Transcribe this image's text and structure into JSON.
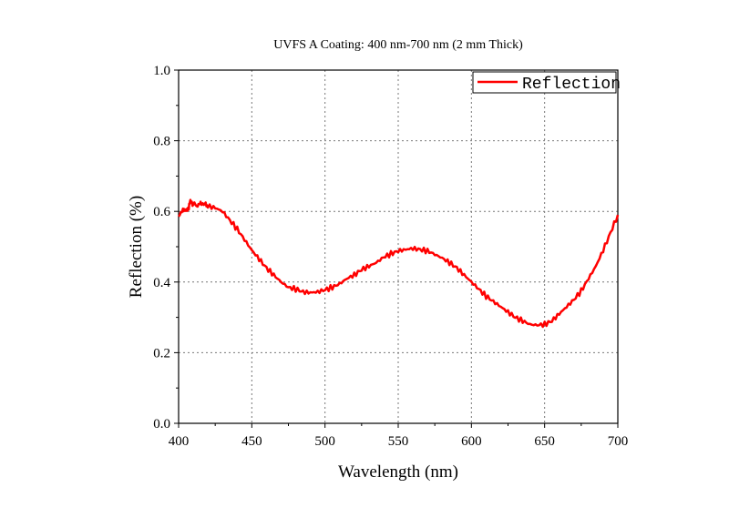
{
  "chart_data": {
    "type": "line",
    "title": "UVFS A Coating: 400 nm-700 nm (2 mm Thick)",
    "xlabel": "Wavelength (nm)",
    "ylabel": "Reflection (%)",
    "xlim": [
      400,
      700
    ],
    "ylim": [
      0,
      1.0
    ],
    "xticks": [
      "400",
      "450",
      "500",
      "550",
      "600",
      "650",
      "700"
    ],
    "yticks": [
      "0.0",
      "0.2",
      "0.4",
      "0.6",
      "0.8",
      "1.0"
    ],
    "grid": true,
    "legend_position": "top-right",
    "series": [
      {
        "name": "Reflection",
        "color": "#ff0000",
        "x": [
          400,
          403,
          405,
          407,
          408,
          410,
          413,
          415,
          418,
          420,
          425,
          430,
          435,
          440,
          445,
          450,
          455,
          460,
          465,
          470,
          475,
          480,
          485,
          490,
          495,
          500,
          505,
          510,
          515,
          520,
          525,
          530,
          535,
          540,
          545,
          550,
          555,
          560,
          565,
          570,
          575,
          580,
          585,
          590,
          595,
          600,
          605,
          610,
          615,
          620,
          625,
          630,
          635,
          640,
          645,
          650,
          655,
          660,
          665,
          670,
          675,
          680,
          685,
          690,
          695,
          700
        ],
        "y": [
          0.59,
          0.6,
          0.6,
          0.61,
          0.635,
          0.62,
          0.615,
          0.62,
          0.625,
          0.615,
          0.61,
          0.6,
          0.575,
          0.55,
          0.52,
          0.49,
          0.465,
          0.44,
          0.42,
          0.4,
          0.385,
          0.38,
          0.372,
          0.37,
          0.372,
          0.378,
          0.385,
          0.395,
          0.41,
          0.42,
          0.435,
          0.445,
          0.455,
          0.47,
          0.48,
          0.488,
          0.492,
          0.495,
          0.492,
          0.488,
          0.478,
          0.468,
          0.455,
          0.44,
          0.42,
          0.4,
          0.38,
          0.36,
          0.345,
          0.33,
          0.315,
          0.3,
          0.29,
          0.28,
          0.278,
          0.28,
          0.29,
          0.31,
          0.33,
          0.35,
          0.375,
          0.41,
          0.445,
          0.49,
          0.54,
          0.59
        ]
      }
    ]
  }
}
